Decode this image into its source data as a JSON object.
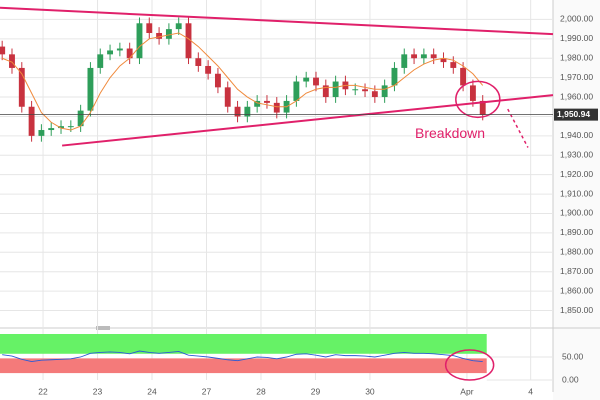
{
  "chart_data": [
    {
      "type": "candlestick",
      "x": [
        -0.75,
        -0.57,
        -0.39,
        -0.21,
        -0.03,
        0.15,
        0.33,
        0.51,
        0.69,
        0.87,
        1.05,
        1.23,
        1.41,
        1.59,
        1.77,
        1.95,
        2.13,
        2.31,
        2.49,
        2.67,
        2.85,
        3.03,
        3.21,
        3.39,
        3.57,
        3.75,
        3.93,
        4.11,
        4.29,
        4.47,
        4.65,
        4.83,
        5.01,
        5.19,
        5.37,
        5.55,
        5.73,
        5.91,
        6.09,
        6.27,
        6.45,
        6.63,
        6.81,
        6.99,
        7.17,
        7.35,
        7.53,
        7.71,
        7.89,
        8.07
      ],
      "open": [
        1986,
        1982,
        1975,
        1955,
        1940,
        1943,
        1944,
        1945,
        1945,
        1953,
        1975,
        1982,
        1984,
        1985,
        1980,
        1998,
        1993,
        1990,
        1995,
        1998,
        1980,
        1976,
        1972,
        1965,
        1955,
        1950,
        1955,
        1958,
        1957,
        1952,
        1958,
        1968,
        1970,
        1966,
        1960,
        1968,
        1964,
        1964,
        1963,
        1960,
        1966,
        1975,
        1982,
        1980,
        1982,
        1980,
        1978,
        1975,
        1966,
        1958
      ],
      "high": [
        1989,
        1985,
        1978,
        1958,
        1946,
        1947,
        1948,
        1948,
        1956,
        1978,
        1985,
        1987,
        1988,
        1988,
        2001,
        2001,
        1996,
        1998,
        2001,
        2001,
        1983,
        1979,
        1975,
        1968,
        1958,
        1958,
        1961,
        1961,
        1960,
        1961,
        1971,
        1973,
        1973,
        1969,
        1971,
        1971,
        1967,
        1967,
        1966,
        1969,
        1978,
        1985,
        1985,
        1985,
        1985,
        1983,
        1981,
        1978,
        1969,
        1961
      ],
      "low": [
        1979,
        1972,
        1952,
        1937,
        1937,
        1940,
        1941,
        1942,
        1942,
        1950,
        1972,
        1979,
        1981,
        1977,
        1977,
        1990,
        1987,
        1987,
        1992,
        1977,
        1973,
        1969,
        1962,
        1952,
        1947,
        1947,
        1952,
        1954,
        1949,
        1949,
        1955,
        1965,
        1963,
        1957,
        1957,
        1961,
        1961,
        1960,
        1957,
        1957,
        1963,
        1972,
        1977,
        1977,
        1977,
        1975,
        1972,
        1963,
        1955,
        1948
      ],
      "close": [
        1982,
        1975,
        1955,
        1940,
        1943,
        1944,
        1945,
        1945,
        1953,
        1975,
        1982,
        1984,
        1985,
        1980,
        1998,
        1993,
        1990,
        1995,
        1998,
        1980,
        1976,
        1972,
        1965,
        1955,
        1950,
        1955,
        1958,
        1957,
        1952,
        1958,
        1968,
        1970,
        1966,
        1960,
        1968,
        1964,
        1964,
        1963,
        1960,
        1966,
        1975,
        1982,
        1980,
        1982,
        1980,
        1978,
        1975,
        1966,
        1958,
        1951
      ],
      "up_color": "#2e9e5a",
      "down_color": "#c8323f",
      "moving_average": {
        "color": "#f08a3c",
        "values": [
          1980,
          1978,
          1972,
          1962,
          1952,
          1947,
          1944,
          1943,
          1945,
          1952,
          1962,
          1970,
          1976,
          1980,
          1986,
          1990,
          1991,
          1992,
          1993,
          1990,
          1986,
          1981,
          1976,
          1970,
          1964,
          1960,
          1957,
          1956,
          1955,
          1955,
          1958,
          1962,
          1964,
          1965,
          1965,
          1966,
          1966,
          1965,
          1964,
          1964,
          1966,
          1970,
          1974,
          1977,
          1979,
          1980,
          1979,
          1976,
          1972,
          1966
        ]
      },
      "trendlines": [
        {
          "x": [
            -0.79,
            9.36
          ],
          "y": [
            2006,
            1992.4
          ],
          "color": "#e0206a"
        },
        {
          "x": [
            0.35,
            9.36
          ],
          "y": [
            1935,
            1961
          ],
          "color": "#e0206a"
        }
      ],
      "projection": {
        "x": [
          8.53,
          8.9
        ],
        "y": [
          1953.8,
          1934
        ],
        "color": "#e0206a"
      },
      "highlight": {
        "x": 7.98,
        "y": 1958.8,
        "color": "#e0206a"
      },
      "annotation": {
        "text": "Breakdown",
        "x": 7.47,
        "y": 1940.7,
        "color": "#e0206a"
      },
      "last_price": {
        "value": 1950.94,
        "label": "1,950.94"
      },
      "xlim": [
        -0.79,
        9.36
      ],
      "xticks": [
        {
          "value": 0,
          "label": "22"
        },
        {
          "value": 1,
          "label": "23"
        },
        {
          "value": 2,
          "label": "24"
        },
        {
          "value": 3,
          "label": "27"
        },
        {
          "value": 4,
          "label": "28"
        },
        {
          "value": 5,
          "label": "29"
        },
        {
          "value": 6,
          "label": "30"
        },
        {
          "value": 7.78,
          "label": "Apr"
        },
        {
          "value": 8.95,
          "label": "4"
        }
      ],
      "ylim": [
        1841,
        2010
      ],
      "yticks": [
        {
          "value": 1850,
          "label": "1,850.00"
        },
        {
          "value": 1860,
          "label": "1,860.00"
        },
        {
          "value": 1870,
          "label": "1,870.00"
        },
        {
          "value": 1880,
          "label": "1,880.00"
        },
        {
          "value": 1890,
          "label": "1,890.00"
        },
        {
          "value": 1900,
          "label": "1,900.00"
        },
        {
          "value": 1910,
          "label": "1,910.00"
        },
        {
          "value": 1920,
          "label": "1,920.00"
        },
        {
          "value": 1930,
          "label": "1,930.00"
        },
        {
          "value": 1940,
          "label": "1,940.00"
        },
        {
          "value": 1950,
          "label": "1,950.00"
        },
        {
          "value": 1960,
          "label": "1,960.00"
        },
        {
          "value": 1970,
          "label": "1,970.00"
        },
        {
          "value": 1980,
          "label": "1,980.00"
        },
        {
          "value": 1990,
          "label": "1,990.00"
        },
        {
          "value": 2000,
          "label": "2,000.00"
        }
      ],
      "grid": true
    },
    {
      "type": "line",
      "x": [
        -0.75,
        -0.57,
        -0.39,
        -0.21,
        -0.03,
        0.15,
        0.33,
        0.51,
        0.69,
        0.87,
        1.05,
        1.23,
        1.41,
        1.59,
        1.77,
        1.95,
        2.13,
        2.31,
        2.49,
        2.67,
        2.85,
        3.03,
        3.21,
        3.39,
        3.57,
        3.75,
        3.93,
        4.11,
        4.29,
        4.47,
        4.65,
        4.83,
        5.01,
        5.19,
        5.37,
        5.55,
        5.73,
        5.91,
        6.09,
        6.27,
        6.45,
        6.63,
        6.81,
        6.99,
        7.17,
        7.35,
        7.53,
        7.71,
        7.89,
        8.07
      ],
      "values": [
        55,
        52,
        45,
        40,
        43,
        44,
        45,
        46,
        50,
        58,
        60,
        61,
        60,
        57,
        63,
        60,
        58,
        60,
        62,
        54,
        52,
        50,
        47,
        44,
        42,
        46,
        50,
        49,
        46,
        50,
        56,
        57,
        54,
        50,
        55,
        53,
        53,
        52,
        50,
        54,
        58,
        60,
        58,
        58,
        57,
        55,
        53,
        47,
        42,
        40
      ],
      "color": "#2a5bd7",
      "zones": [
        {
          "from": 57,
          "to": 100,
          "color": "#66f266"
        },
        {
          "from": 15,
          "to": 47,
          "color": "#f47a7a"
        }
      ],
      "highlight": {
        "x": 7.83,
        "y": 32.6,
        "color": "#e0206a"
      },
      "xlim": [
        -0.79,
        9.36
      ],
      "ylim": [
        0,
        100
      ],
      "yticks": [
        {
          "value": 0,
          "label": "0.00"
        },
        {
          "value": 50,
          "label": "50.00"
        }
      ],
      "grid": true
    }
  ]
}
